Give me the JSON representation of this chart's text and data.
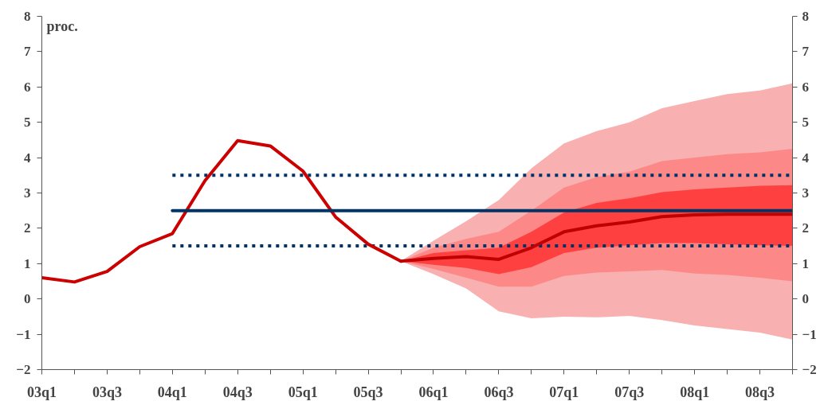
{
  "chart_data": {
    "type": "line",
    "ylabel": "proc.",
    "categories": [
      "03q1",
      null,
      "03q3",
      null,
      "04q1",
      null,
      "04q3",
      null,
      "05q1",
      null,
      "05q3",
      null,
      "06q1",
      null,
      "06q3",
      null,
      "07q1",
      null,
      "07q3",
      null,
      "08q1",
      null,
      "08q3",
      null
    ],
    "series": [
      {
        "color": "#f8b0b0",
        "values": [
          null,
          null,
          null,
          null,
          null,
          null,
          null,
          null,
          null,
          null,
          null,
          null,
          null,
          null,
          null,
          null,
          null,
          null,
          null,
          null,
          null,
          null,
          null,
          null
        ],
        "lower": [
          null,
          null,
          null,
          null,
          null,
          null,
          null,
          null,
          null,
          null,
          null,
          1.07,
          0.7,
          0.3,
          -0.35,
          -0.55,
          -0.5,
          -0.52,
          -0.48,
          -0.6,
          -0.75,
          -0.85,
          -0.95,
          -1.15
        ],
        "upper": [
          null,
          null,
          null,
          null,
          null,
          null,
          null,
          null,
          null,
          null,
          null,
          1.07,
          1.65,
          2.2,
          2.8,
          3.7,
          4.4,
          4.75,
          5.0,
          5.4,
          5.6,
          5.8,
          5.9,
          6.1
        ]
      },
      {
        "color": "#fd8888",
        "values": [
          null,
          null,
          null,
          null,
          null,
          null,
          null,
          null,
          null,
          null,
          null,
          null,
          null,
          null,
          null,
          null,
          null,
          null,
          null,
          null,
          null,
          null,
          null,
          null
        ],
        "lower": [
          null,
          null,
          null,
          null,
          null,
          null,
          null,
          null,
          null,
          null,
          null,
          1.07,
          0.85,
          0.6,
          0.35,
          0.35,
          0.65,
          0.75,
          0.78,
          0.82,
          0.72,
          0.68,
          0.6,
          0.5
        ],
        "upper": [
          null,
          null,
          null,
          null,
          null,
          null,
          null,
          null,
          null,
          null,
          null,
          1.07,
          1.45,
          1.7,
          1.9,
          2.5,
          3.15,
          3.45,
          3.6,
          3.9,
          4.0,
          4.1,
          4.15,
          4.25
        ]
      },
      {
        "color": "#ff4040",
        "values": [
          null,
          null,
          null,
          null,
          null,
          null,
          null,
          null,
          null,
          null,
          null,
          null,
          null,
          null,
          null,
          null,
          null,
          null,
          null,
          null,
          null,
          null,
          null,
          null
        ],
        "lower": [
          null,
          null,
          null,
          null,
          null,
          null,
          null,
          null,
          null,
          null,
          null,
          1.07,
          0.97,
          0.88,
          0.7,
          0.9,
          1.3,
          1.45,
          1.52,
          1.58,
          1.58,
          1.55,
          1.52,
          1.5
        ],
        "upper": [
          null,
          null,
          null,
          null,
          null,
          null,
          null,
          null,
          null,
          null,
          null,
          1.07,
          1.3,
          1.38,
          1.45,
          1.9,
          2.45,
          2.72,
          2.85,
          3.02,
          3.1,
          3.15,
          3.2,
          3.22
        ]
      },
      {
        "color": "#003366",
        "line_style": "dashed",
        "values": [
          null,
          null,
          null,
          null,
          3.5,
          3.5,
          3.5,
          3.5,
          3.5,
          3.5,
          3.5,
          3.5,
          3.5,
          3.5,
          3.5,
          3.5,
          3.5,
          3.5,
          3.5,
          3.5,
          3.5,
          3.5,
          3.5,
          3.5
        ]
      },
      {
        "color": "#003366",
        "line_style": "dashed",
        "values": [
          null,
          null,
          null,
          null,
          1.5,
          1.5,
          1.5,
          1.5,
          1.5,
          1.5,
          1.5,
          1.5,
          1.5,
          1.5,
          1.5,
          1.5,
          1.5,
          1.5,
          1.5,
          1.5,
          1.5,
          1.5,
          1.5,
          1.5
        ]
      },
      {
        "color": "#cc0000",
        "values": [
          0.6,
          0.48,
          0.78,
          1.48,
          1.85,
          3.35,
          4.48,
          4.33,
          3.62,
          2.32,
          1.55,
          1.07,
          null,
          null,
          null,
          null,
          null,
          null,
          null,
          null,
          null,
          null,
          null,
          null
        ]
      },
      {
        "color": "#c00000",
        "values": [
          null,
          null,
          null,
          null,
          null,
          null,
          null,
          null,
          null,
          null,
          null,
          1.07,
          1.15,
          1.2,
          1.12,
          1.45,
          1.9,
          2.07,
          2.18,
          2.33,
          2.38,
          2.4,
          2.4,
          2.4
        ]
      },
      {
        "color": "#003366",
        "line_style": "solid",
        "values": [
          null,
          null,
          null,
          null,
          2.5,
          2.5,
          2.5,
          2.5,
          2.5,
          2.5,
          2.5,
          2.5,
          2.5,
          2.5,
          2.5,
          2.5,
          2.5,
          2.5,
          2.5,
          2.5,
          2.5,
          2.5,
          2.5,
          2.5
        ]
      }
    ],
    "ylim": [
      -2,
      8
    ],
    "yticks": [
      -2,
      -1,
      0,
      1,
      2,
      3,
      4,
      5,
      6,
      7,
      8
    ],
    "y2lim": [
      -2,
      8
    ],
    "y2ticks": [
      -2,
      -1,
      0,
      1,
      2,
      3,
      4,
      5,
      6,
      7,
      8
    ],
    "grid": false
  }
}
